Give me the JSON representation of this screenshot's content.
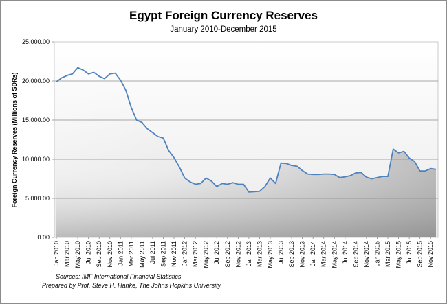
{
  "chart_data": {
    "type": "area",
    "title": "Egypt Foreign Currency Reserves",
    "subtitle": "January 2010-December 2015",
    "ylabel": "Foreign Currency  Reserves (Millions of SDRs)",
    "xlabel": "",
    "ylim": [
      0,
      25000
    ],
    "yticks": [
      "0.00",
      "5,000.00",
      "10,000.00",
      "15,000.00",
      "20,000.00",
      "25,000.00"
    ],
    "grid": true,
    "legend": "none",
    "line_color": "#4f81bd",
    "x": [
      "Jan 2010",
      "Feb 2010",
      "Mar 2010",
      "Apr 2010",
      "May 2010",
      "Jun 2010",
      "Jul 2010",
      "Aug 2010",
      "Sep 2010",
      "Oct 2010",
      "Nov 2010",
      "Dec 2010",
      "Jan 2011",
      "Feb 2011",
      "Mar 2011",
      "Apr 2011",
      "May 2011",
      "Jun 2011",
      "Jul 2011",
      "Aug 2011",
      "Sep 2011",
      "Oct 2011",
      "Nov 2011",
      "Dec 2011",
      "Jan 2012",
      "Feb 2012",
      "Mar 2012",
      "Apr 2012",
      "May 2012",
      "Jun 2012",
      "Jul 2012",
      "Aug 2012",
      "Sep 2012",
      "Oct 2012",
      "Nov 2012",
      "Dec 2012",
      "Jan 2013",
      "Feb 2013",
      "Mar 2013",
      "Apr 2013",
      "May 2013",
      "Jun 2013",
      "Jul 2013",
      "Aug 2013",
      "Sep 2013",
      "Oct 2013",
      "Nov 2013",
      "Dec 2013",
      "Jan 2014",
      "Feb 2014",
      "Mar 2014",
      "Apr 2014",
      "May 2014",
      "Jun 2014",
      "Jul 2014",
      "Aug 2014",
      "Sep 2014",
      "Oct 2014",
      "Nov 2014",
      "Dec 2014",
      "Jan 2015",
      "Feb 2015",
      "Mar 2015",
      "Apr 2015",
      "May 2015",
      "Jun 2015",
      "Jul 2015",
      "Aug 2015",
      "Sep 2015",
      "Oct 2015",
      "Nov 2015",
      "Dec 2015"
    ],
    "xtick_labels": [
      "Jan 2010",
      "Mar 2010",
      "May 2010",
      "Jul 2010",
      "Sep 2010",
      "Nov 2010",
      "Jan 2011",
      "Mar 2011",
      "May 2011",
      "Jul 2011",
      "Sep 2011",
      "Nov 2011",
      "Jan 2012",
      "Mar 2012",
      "May 2012",
      "Jul 2012",
      "Sep 2012",
      "Nov 2012",
      "Jan 2013",
      "Mar 2013",
      "May 2013",
      "Jul 2013",
      "Sep 2013",
      "Nov 2013",
      "Jan 2014",
      "Mar 2014",
      "May 2014",
      "Jul 2014",
      "Sep 2014",
      "Nov 2014",
      "Jan 2015",
      "Mar 2015",
      "May 2015",
      "Jul 2015",
      "Sep 2015",
      "Nov 2015"
    ],
    "values": [
      19900,
      20400,
      20700,
      20900,
      21700,
      21400,
      20900,
      21100,
      20600,
      20300,
      20900,
      21000,
      20100,
      18800,
      16600,
      15000,
      14700,
      13900,
      13400,
      12900,
      12700,
      11100,
      10200,
      9000,
      7600,
      7100,
      6800,
      6900,
      7600,
      7200,
      6500,
      6900,
      6800,
      7000,
      6800,
      6800,
      5800,
      5850,
      5900,
      6500,
      7600,
      6900,
      9500,
      9450,
      9200,
      9100,
      8550,
      8100,
      8050,
      8050,
      8100,
      8100,
      8050,
      7650,
      7750,
      7900,
      8250,
      8300,
      7700,
      7500,
      7650,
      7800,
      7800,
      11300,
      10800,
      11000,
      10150,
      9700,
      8500,
      8500,
      8800,
      8700
    ],
    "annotations": [
      "Sources: IMF International Financial Statistics",
      "Prepared by Prof. Steve H. Hanke, The Johns Hopkins University."
    ]
  }
}
